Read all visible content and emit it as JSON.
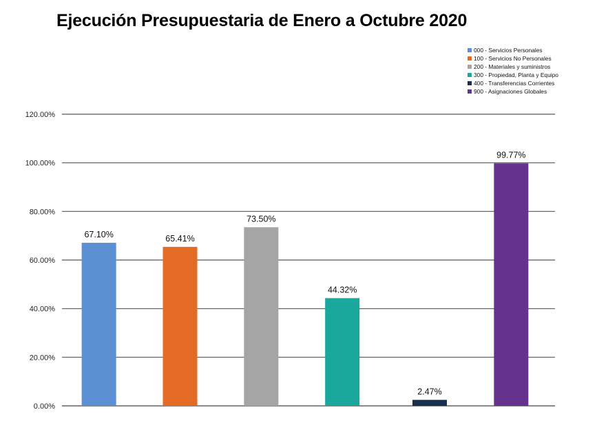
{
  "chart_data": {
    "type": "bar",
    "title": "Ejecución Presupuestaria de Enero a Octubre 2020",
    "categories": [
      "000 - Servicios Personales",
      "100 - Servicios No Personales",
      "200 - Materiales y suministros",
      "300 - Propiedad, Planta y Equipo",
      "400 - Transferencias Corrientes",
      "900 - Asignaciones Globales"
    ],
    "values": [
      67.1,
      65.41,
      73.5,
      44.32,
      2.47,
      99.77
    ],
    "data_labels": [
      "67.10%",
      "65.41%",
      "73.50%",
      "44.32%",
      "2.47%",
      "99.77%"
    ],
    "colors": [
      "#5b8fd4",
      "#e36b23",
      "#a5a5a5",
      "#1aa89c",
      "#17304f",
      "#65328f"
    ],
    "ylim": [
      0,
      120
    ],
    "yticks": [
      0,
      20,
      40,
      60,
      80,
      100,
      120
    ],
    "ytick_labels": [
      "0.00%",
      "20.00%",
      "40.00%",
      "60.00%",
      "80.00%",
      "100.00%",
      "120.00%"
    ],
    "grid": true,
    "legend_position": "top-right"
  }
}
